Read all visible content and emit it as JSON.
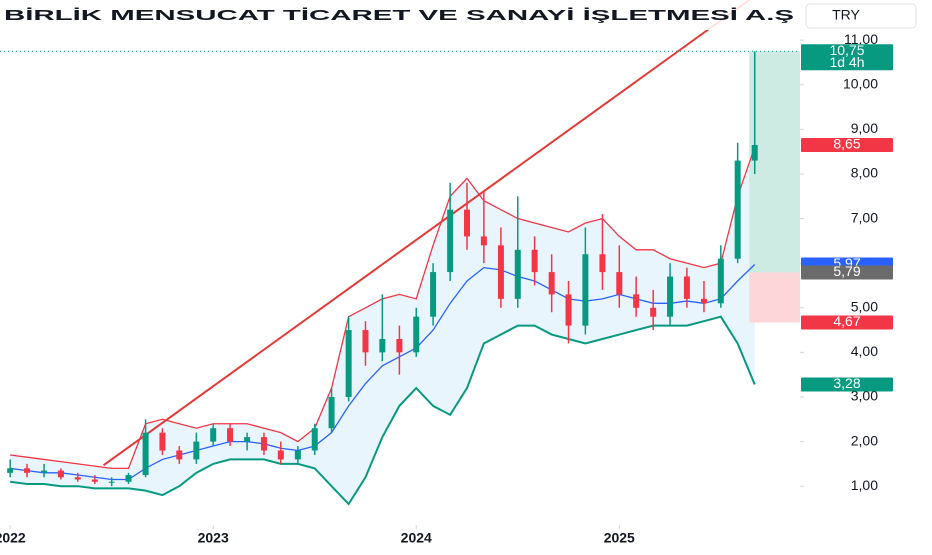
{
  "chart_data": {
    "type": "candlestick",
    "title": "BİRLİK MENSUCAT TİCARET VE SANAYİ İŞLETMESİ A.Ş",
    "currency": "TRY",
    "x": [
      2022.0,
      2022.083,
      2022.167,
      2022.25,
      2022.333,
      2022.417,
      2022.5,
      2022.583,
      2022.667,
      2022.75,
      2022.833,
      2022.917,
      2023.0,
      2023.083,
      2023.167,
      2023.25,
      2023.333,
      2023.417,
      2023.5,
      2023.583,
      2023.667,
      2023.75,
      2023.833,
      2023.917,
      2024.0,
      2024.083,
      2024.167,
      2024.25,
      2024.333,
      2024.417,
      2024.5,
      2024.583,
      2024.667,
      2024.75,
      2024.833,
      2024.917,
      2025.0,
      2025.083,
      2025.167,
      2025.25,
      2025.333,
      2025.417,
      2025.5,
      2025.583,
      2025.667
    ],
    "open": [
      1.3,
      1.4,
      1.3,
      1.35,
      1.2,
      1.15,
      1.1,
      1.1,
      1.25,
      2.2,
      1.8,
      1.6,
      2.0,
      2.3,
      2.0,
      2.1,
      1.8,
      1.6,
      1.8,
      2.3,
      3.0,
      4.5,
      4.0,
      4.3,
      4.0,
      4.8,
      5.8,
      7.2,
      6.6,
      6.4,
      5.2,
      6.3,
      5.8,
      5.3,
      4.6,
      6.2,
      5.8,
      5.3,
      5.0,
      4.8,
      5.7,
      5.2,
      5.1,
      6.1,
      8.3
    ],
    "high": [
      1.6,
      1.5,
      1.5,
      1.4,
      1.3,
      1.25,
      1.2,
      1.3,
      2.5,
      2.3,
      1.9,
      2.2,
      2.4,
      2.4,
      2.2,
      2.2,
      2.0,
      1.9,
      2.4,
      3.2,
      4.8,
      4.7,
      5.3,
      4.6,
      5.0,
      6.0,
      7.8,
      7.8,
      7.6,
      6.8,
      7.5,
      6.6,
      6.2,
      5.6,
      6.8,
      7.1,
      6.4,
      5.7,
      5.4,
      6.0,
      5.9,
      5.6,
      6.4,
      8.7,
      10.75
    ],
    "low": [
      1.2,
      1.2,
      1.2,
      1.15,
      1.1,
      1.05,
      1.0,
      1.05,
      1.2,
      1.7,
      1.5,
      1.5,
      1.9,
      1.9,
      1.8,
      1.7,
      1.5,
      1.5,
      1.7,
      2.2,
      2.9,
      3.7,
      3.8,
      3.5,
      3.9,
      4.6,
      5.6,
      6.3,
      6.0,
      5.0,
      5.0,
      5.5,
      4.9,
      4.2,
      4.4,
      5.4,
      5.0,
      4.8,
      4.5,
      4.6,
      5.0,
      4.9,
      5.0,
      6.0,
      8.0
    ],
    "close": [
      1.4,
      1.3,
      1.35,
      1.2,
      1.15,
      1.1,
      1.1,
      1.25,
      2.2,
      1.8,
      1.6,
      2.0,
      2.3,
      2.0,
      2.1,
      1.8,
      1.6,
      1.8,
      2.3,
      3.0,
      4.5,
      4.0,
      4.3,
      4.0,
      4.8,
      5.8,
      7.2,
      6.6,
      6.4,
      5.2,
      6.3,
      5.8,
      5.3,
      4.6,
      6.2,
      5.8,
      5.3,
      5.0,
      4.8,
      5.7,
      5.2,
      5.1,
      6.1,
      8.3,
      8.65
    ],
    "up_color": "#089981",
    "down_color": "#f23645",
    "series": [
      {
        "color": "#f23645",
        "values": [
          1.7,
          1.65,
          1.6,
          1.55,
          1.5,
          1.45,
          1.4,
          1.4,
          2.4,
          2.5,
          2.4,
          2.3,
          2.4,
          2.4,
          2.4,
          2.3,
          2.2,
          2.0,
          2.3,
          3.2,
          4.8,
          5.0,
          5.2,
          5.3,
          5.2,
          6.4,
          7.5,
          7.9,
          7.4,
          7.2,
          7.0,
          6.9,
          6.8,
          6.7,
          6.9,
          7.0,
          6.6,
          6.3,
          6.3,
          6.1,
          6.0,
          5.9,
          6.0,
          7.5,
          8.6
        ]
      },
      {
        "color": "#2962ff",
        "values": [
          1.4,
          1.35,
          1.3,
          1.3,
          1.25,
          1.2,
          1.15,
          1.15,
          1.4,
          1.6,
          1.7,
          1.8,
          1.9,
          2.0,
          2.0,
          1.95,
          1.85,
          1.8,
          1.9,
          2.2,
          2.8,
          3.3,
          3.7,
          3.9,
          4.1,
          4.5,
          5.1,
          5.6,
          5.9,
          5.85,
          5.7,
          5.6,
          5.4,
          5.2,
          5.15,
          5.2,
          5.3,
          5.2,
          5.1,
          5.1,
          5.15,
          5.1,
          5.2,
          5.6,
          5.97
        ]
      },
      {
        "color": "#089981",
        "values": [
          1.1,
          1.05,
          1.05,
          1.0,
          1.0,
          0.95,
          0.95,
          0.95,
          0.9,
          0.8,
          1.0,
          1.3,
          1.5,
          1.6,
          1.6,
          1.6,
          1.5,
          1.5,
          1.4,
          1.0,
          0.6,
          1.2,
          2.1,
          2.8,
          3.2,
          2.8,
          2.6,
          3.2,
          4.2,
          4.4,
          4.6,
          4.6,
          4.4,
          4.3,
          4.2,
          4.3,
          4.4,
          4.5,
          4.6,
          4.6,
          4.6,
          4.7,
          4.8,
          4.2,
          3.28
        ]
      }
    ],
    "band_fill": "#e3f2fd",
    "trendline": {
      "x": [
        2022.46,
        2025.64
      ],
      "values": [
        1.47,
        11.9
      ],
      "color": "#e53935"
    },
    "position": {
      "x": [
        2025.64,
        2025.9
      ],
      "target": 10.75,
      "entry": 5.79,
      "stop": 4.67,
      "profit_color": "#cdebe3",
      "loss_color": "#fcd6d8"
    },
    "price_labels": [
      {
        "value": 10.75,
        "label": "10,75",
        "color": "#089981"
      },
      {
        "value": 8.65,
        "label": "8,65",
        "color": "#f23645"
      },
      {
        "value": 5.97,
        "label": "5,97",
        "color": "#2962ff"
      },
      {
        "value": 5.79,
        "label": "5,79",
        "color": "#6b6b6b"
      },
      {
        "value": 4.67,
        "label": "4,67",
        "color": "#f23645"
      },
      {
        "value": 3.28,
        "label": "3,28",
        "color": "#089981"
      }
    ],
    "countdown": "1d 4h",
    "xlim": [
      2021.95,
      2025.89
    ],
    "xticks": [
      2022,
      2023,
      2024,
      2025
    ],
    "ylim": [
      0.13,
      11.9
    ],
    "yticks": [
      {
        "value": 1,
        "label": "1,00"
      },
      {
        "value": 2,
        "label": "2,00"
      },
      {
        "value": 3,
        "label": "3,00"
      },
      {
        "value": 4,
        "label": "4,00"
      },
      {
        "value": 5,
        "label": "5,00"
      },
      {
        "value": 6,
        "label": "6,00"
      },
      {
        "value": 7,
        "label": "7,00"
      },
      {
        "value": 8,
        "label": "8,00"
      },
      {
        "value": 9,
        "label": "9,00"
      },
      {
        "value": 10,
        "label": "10,00"
      },
      {
        "value": 11,
        "label": "11,00"
      }
    ]
  }
}
